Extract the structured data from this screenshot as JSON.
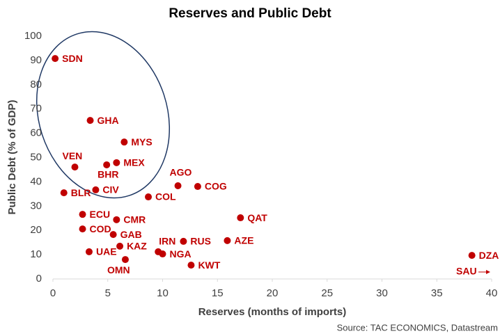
{
  "chart_data": {
    "type": "scatter",
    "title": "Reserves and Public Debt",
    "x_label": "Reserves (months of imports)",
    "y_label": "Public Debt (% of GDP)",
    "source": "Source: TAC ECONOMICS, Datastream",
    "color": "#c00000",
    "labels": [
      "SDN",
      "GHA",
      "MYS",
      "VEN",
      "MEX",
      "BHR",
      "AGO",
      "COG",
      "BLR",
      "CIV",
      "COL",
      "ECU",
      "QAT",
      "CMR",
      "COD",
      "GAB",
      "RUS",
      "AZE",
      "IRN",
      "KAZ",
      "UAE",
      "NGA",
      "OMN",
      "KWT",
      "DZA"
    ],
    "x": [
      0.2,
      3.4,
      6.5,
      2.0,
      5.8,
      4.9,
      11.4,
      13.2,
      1.0,
      3.9,
      8.7,
      2.7,
      17.1,
      5.8,
      2.7,
      5.5,
      11.9,
      15.9,
      9.6,
      6.1,
      3.3,
      10.0,
      6.6,
      12.6,
      38.2
    ],
    "values": [
      90.8,
      65.3,
      56.4,
      46.1,
      47.9,
      47.0,
      38.4,
      38.1,
      35.5,
      36.7,
      33.8,
      26.6,
      25.2,
      24.4,
      20.6,
      18.3,
      15.5,
      15.8,
      11.2,
      13.5,
      11.2,
      10.3,
      8.0,
      5.7,
      9.7
    ],
    "annotation": "SAU",
    "xlim": [
      0,
      40
    ],
    "xticks": [
      0,
      5,
      10,
      15,
      20,
      25,
      30,
      35,
      40
    ],
    "ylim": [
      0,
      100
    ],
    "yticks": [
      0,
      10,
      20,
      30,
      40,
      50,
      60,
      70,
      80,
      90,
      100
    ]
  }
}
